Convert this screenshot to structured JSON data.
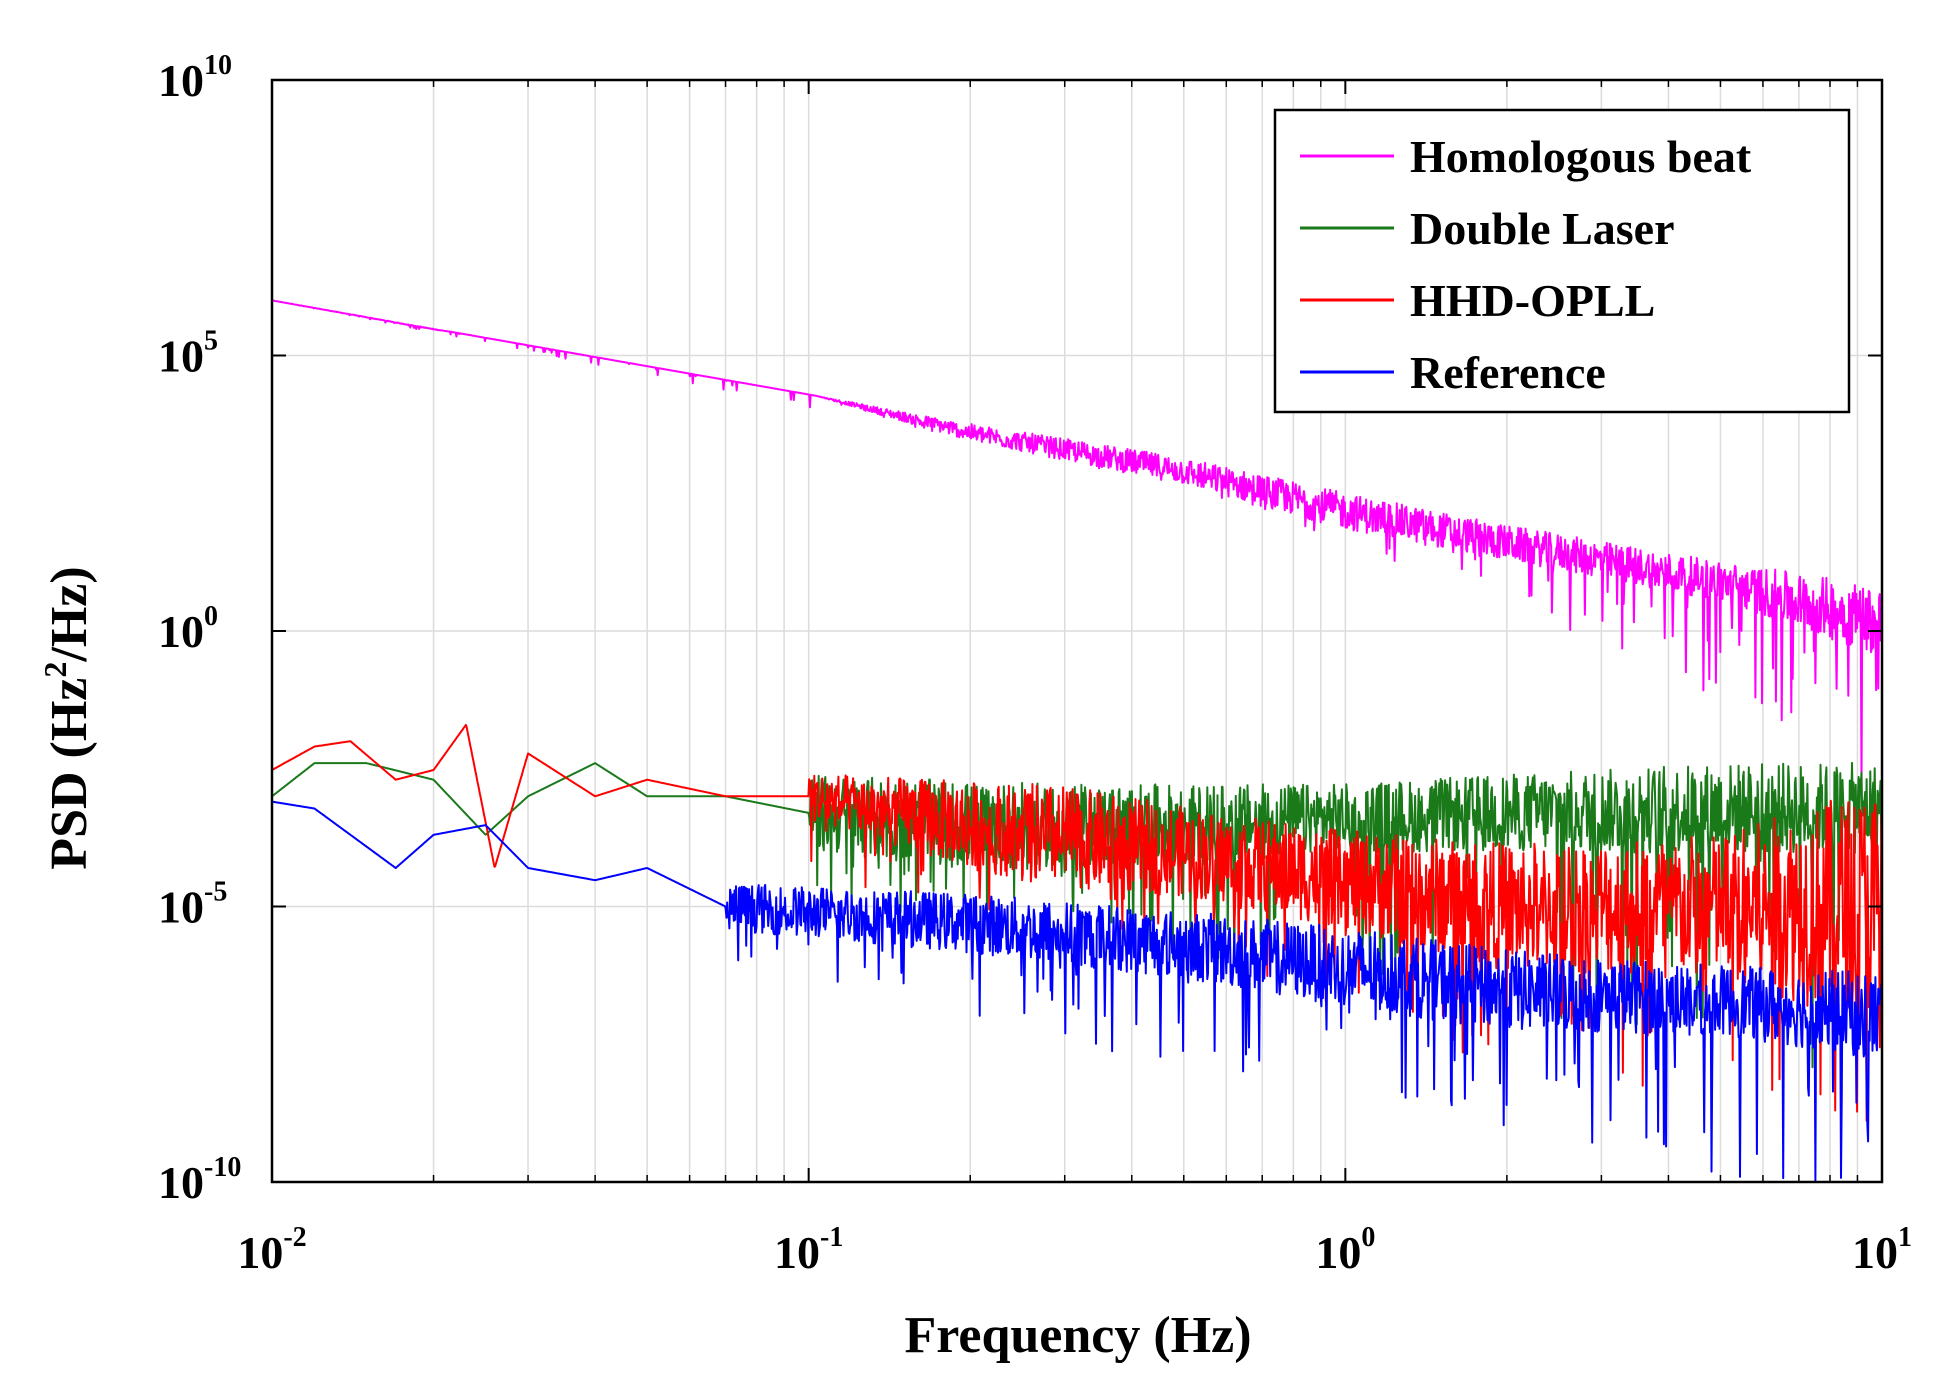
{
  "chart_data": {
    "type": "line",
    "title": "",
    "xlabel": "Frequency (Hz)",
    "ylabel_prefix": "PSD (Hz",
    "ylabel_sup": "2",
    "ylabel_suffix": "/Hz)",
    "xscale": "log",
    "yscale": "log",
    "xlim": [
      0.01,
      10
    ],
    "ylim": [
      1e-10,
      10000000000.0
    ],
    "grid": true,
    "legend_position": "top-right",
    "x_ticks": [
      {
        "base": "10",
        "exp": "-2",
        "value": 0.01
      },
      {
        "base": "10",
        "exp": "-1",
        "value": 0.1
      },
      {
        "base": "10",
        "exp": "0",
        "value": 1
      },
      {
        "base": "10",
        "exp": "1",
        "value": 10
      }
    ],
    "y_ticks": [
      {
        "base": "10",
        "exp": "10",
        "value": 10000000000.0
      },
      {
        "base": "10",
        "exp": "5",
        "value": 100000.0
      },
      {
        "base": "10",
        "exp": "0",
        "value": 1
      },
      {
        "base": "10",
        "exp": "-5",
        "value": 1e-05
      },
      {
        "base": "10",
        "exp": "-10",
        "value": 1e-10
      }
    ],
    "series": [
      {
        "name": "Homologous beat",
        "color": "#ff00ff",
        "points": [
          [
            0.01,
            1000000.0
          ],
          [
            0.02,
            300000.0
          ],
          [
            0.05,
            80000.0
          ],
          [
            0.1,
            20000.0
          ],
          [
            0.2,
            4000.0
          ],
          [
            0.5,
            800
          ],
          [
            1,
            150
          ],
          [
            2,
            40
          ],
          [
            5,
            8
          ],
          [
            10,
            1.5
          ]
        ],
        "min_band": [
          [
            0.01,
            1000000.0
          ],
          [
            0.2,
            3000.0
          ],
          [
            0.5,
            400
          ],
          [
            1,
            40
          ],
          [
            2,
            3
          ],
          [
            5,
            0.05
          ],
          [
            10,
            0.001
          ]
        ],
        "max_band": [
          [
            0.01,
            1000000.0
          ],
          [
            0.2,
            6000.0
          ],
          [
            0.5,
            1500
          ],
          [
            1,
            350
          ],
          [
            2,
            90
          ],
          [
            5,
            20
          ],
          [
            10,
            8
          ]
        ]
      },
      {
        "name": "Double Laser",
        "color": "#1a7a1a",
        "points": [
          [
            0.01,
            0.001
          ],
          [
            0.012,
            0.004
          ],
          [
            0.015,
            0.004
          ],
          [
            0.02,
            0.002
          ],
          [
            0.025,
            0.0002
          ],
          [
            0.03,
            0.001
          ],
          [
            0.04,
            0.004
          ],
          [
            0.05,
            0.001
          ],
          [
            0.07,
            0.001
          ],
          [
            0.1,
            0.0005
          ],
          [
            0.2,
            0.0003
          ],
          [
            0.5,
            0.0003
          ],
          [
            1,
            0.0004
          ],
          [
            2,
            0.0005
          ],
          [
            5,
            0.0006
          ],
          [
            10,
            0.0006
          ]
        ],
        "min_band": [
          [
            0.1,
            1e-05
          ],
          [
            0.3,
            5e-06
          ],
          [
            0.5,
            1e-06
          ],
          [
            1,
            1e-07
          ],
          [
            2,
            5e-08
          ],
          [
            5,
            1e-08
          ],
          [
            10,
            1e-08
          ]
        ],
        "max_band": [
          [
            0.1,
            0.003
          ],
          [
            0.3,
            0.002
          ],
          [
            0.5,
            0.002
          ],
          [
            1,
            0.002
          ],
          [
            2,
            0.003
          ],
          [
            5,
            0.005
          ],
          [
            10,
            0.005
          ]
        ]
      },
      {
        "name": "HHD-OPLL",
        "color": "#ff0000",
        "points": [
          [
            0.01,
            0.003
          ],
          [
            0.012,
            0.008
          ],
          [
            0.014,
            0.01
          ],
          [
            0.017,
            0.002
          ],
          [
            0.02,
            0.003
          ],
          [
            0.023,
            0.02
          ],
          [
            0.026,
            5e-05
          ],
          [
            0.03,
            0.006
          ],
          [
            0.04,
            0.001
          ],
          [
            0.05,
            0.002
          ],
          [
            0.07,
            0.001
          ],
          [
            0.1,
            0.001
          ],
          [
            0.2,
            0.0003
          ],
          [
            0.5,
            0.0001
          ],
          [
            1,
            3e-05
          ],
          [
            2,
            1e-05
          ],
          [
            5,
            1e-05
          ],
          [
            10,
            1e-05
          ]
        ],
        "min_band": [
          [
            0.1,
            3e-05
          ],
          [
            0.3,
            5e-06
          ],
          [
            0.5,
            1e-06
          ],
          [
            1,
            1e-07
          ],
          [
            2,
            1e-08
          ],
          [
            5,
            1e-09
          ],
          [
            10,
            1e-09
          ]
        ],
        "max_band": [
          [
            0.1,
            0.003
          ],
          [
            0.3,
            0.002
          ],
          [
            0.5,
            0.0008
          ],
          [
            1,
            0.0003
          ],
          [
            2,
            0.0002
          ],
          [
            5,
            0.0003
          ],
          [
            10,
            0.003
          ]
        ]
      },
      {
        "name": "Reference",
        "color": "#0000ff",
        "points": [
          [
            0.01,
            0.0008
          ],
          [
            0.012,
            0.0006
          ],
          [
            0.014,
            0.0002
          ],
          [
            0.017,
            5e-05
          ],
          [
            0.02,
            0.0002
          ],
          [
            0.025,
            0.0003
          ],
          [
            0.03,
            5e-05
          ],
          [
            0.04,
            3e-05
          ],
          [
            0.05,
            5e-05
          ],
          [
            0.07,
            1e-05
          ],
          [
            0.1,
            8e-06
          ],
          [
            0.2,
            5e-06
          ],
          [
            0.5,
            2e-06
          ],
          [
            1,
            8e-07
          ],
          [
            2,
            3e-07
          ],
          [
            5,
            2e-07
          ],
          [
            10,
            1e-07
          ]
        ],
        "min_band": [
          [
            0.07,
            1e-06
          ],
          [
            0.2,
            1e-07
          ],
          [
            0.5,
            1e-08
          ],
          [
            1,
            5e-09
          ],
          [
            2,
            1e-09
          ],
          [
            5,
            1e-10
          ],
          [
            10,
            1e-10
          ]
        ],
        "max_band": [
          [
            0.07,
            3e-05
          ],
          [
            0.2,
            2e-05
          ],
          [
            0.5,
            1e-05
          ],
          [
            1,
            5e-06
          ],
          [
            2,
            2e-06
          ],
          [
            5,
            1e-06
          ],
          [
            10,
            8e-07
          ]
        ]
      }
    ]
  }
}
